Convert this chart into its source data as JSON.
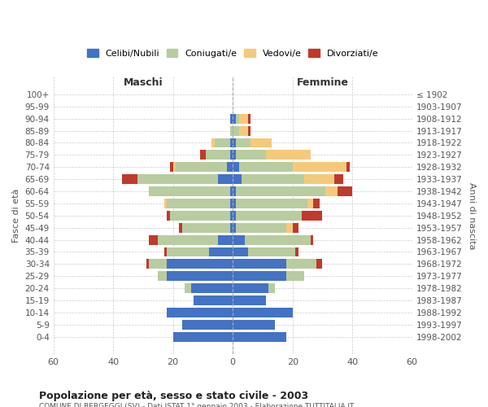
{
  "age_groups": [
    "0-4",
    "5-9",
    "10-14",
    "15-19",
    "20-24",
    "25-29",
    "30-34",
    "35-39",
    "40-44",
    "45-49",
    "50-54",
    "55-59",
    "60-64",
    "65-69",
    "70-74",
    "75-79",
    "80-84",
    "85-89",
    "90-94",
    "95-99",
    "100+"
  ],
  "birth_years": [
    "1998-2002",
    "1993-1997",
    "1988-1992",
    "1983-1987",
    "1978-1982",
    "1973-1977",
    "1968-1972",
    "1963-1967",
    "1958-1962",
    "1953-1957",
    "1948-1952",
    "1943-1947",
    "1938-1942",
    "1933-1937",
    "1928-1932",
    "1923-1927",
    "1918-1922",
    "1913-1917",
    "1908-1912",
    "1903-1907",
    "≤ 1902"
  ],
  "maschi": {
    "celibi": [
      20,
      17,
      22,
      13,
      14,
      22,
      22,
      8,
      5,
      1,
      1,
      1,
      1,
      5,
      2,
      1,
      1,
      0,
      1,
      0,
      0
    ],
    "coniugati": [
      0,
      0,
      0,
      0,
      2,
      3,
      6,
      14,
      20,
      16,
      20,
      21,
      27,
      27,
      17,
      8,
      5,
      1,
      0,
      0,
      0
    ],
    "vedovi": [
      0,
      0,
      0,
      0,
      0,
      0,
      0,
      0,
      0,
      0,
      0,
      1,
      0,
      0,
      1,
      0,
      1,
      0,
      0,
      0,
      0
    ],
    "divorziati": [
      0,
      0,
      0,
      0,
      0,
      0,
      1,
      1,
      3,
      1,
      1,
      0,
      0,
      5,
      1,
      2,
      0,
      0,
      0,
      0,
      0
    ]
  },
  "femmine": {
    "nubili": [
      18,
      14,
      20,
      11,
      12,
      18,
      18,
      5,
      4,
      1,
      1,
      1,
      1,
      3,
      2,
      1,
      1,
      0,
      1,
      0,
      0
    ],
    "coniugate": [
      0,
      0,
      0,
      0,
      2,
      6,
      10,
      16,
      22,
      17,
      22,
      24,
      30,
      21,
      18,
      10,
      5,
      2,
      1,
      0,
      0
    ],
    "vedove": [
      0,
      0,
      0,
      0,
      0,
      0,
      0,
      0,
      0,
      2,
      0,
      2,
      4,
      10,
      18,
      15,
      7,
      3,
      3,
      0,
      0
    ],
    "divorziate": [
      0,
      0,
      0,
      0,
      0,
      0,
      2,
      1,
      1,
      2,
      7,
      2,
      5,
      3,
      1,
      0,
      0,
      1,
      1,
      0,
      0
    ]
  },
  "colors": {
    "celibi": "#4472c4",
    "coniugati": "#b8cca0",
    "vedovi": "#f5c97a",
    "divorziati": "#c0392b"
  },
  "xlim": 60,
  "title": "Popolazione per età, sesso e stato civile - 2003",
  "subtitle": "COMUNE DI BERGEGGI (SV) - Dati ISTAT 1° gennaio 2003 - Elaborazione TUTTITALIA.IT",
  "ylabel_left": "Fasce di età",
  "ylabel_right": "Anni di nascita",
  "xlabel_left": "Maschi",
  "xlabel_right": "Femmine",
  "legend_labels": [
    "Celibi/Nubili",
    "Coniugati/e",
    "Vedovi/e",
    "Divorziati/e"
  ],
  "background_color": "#ffffff",
  "bar_height": 0.8
}
